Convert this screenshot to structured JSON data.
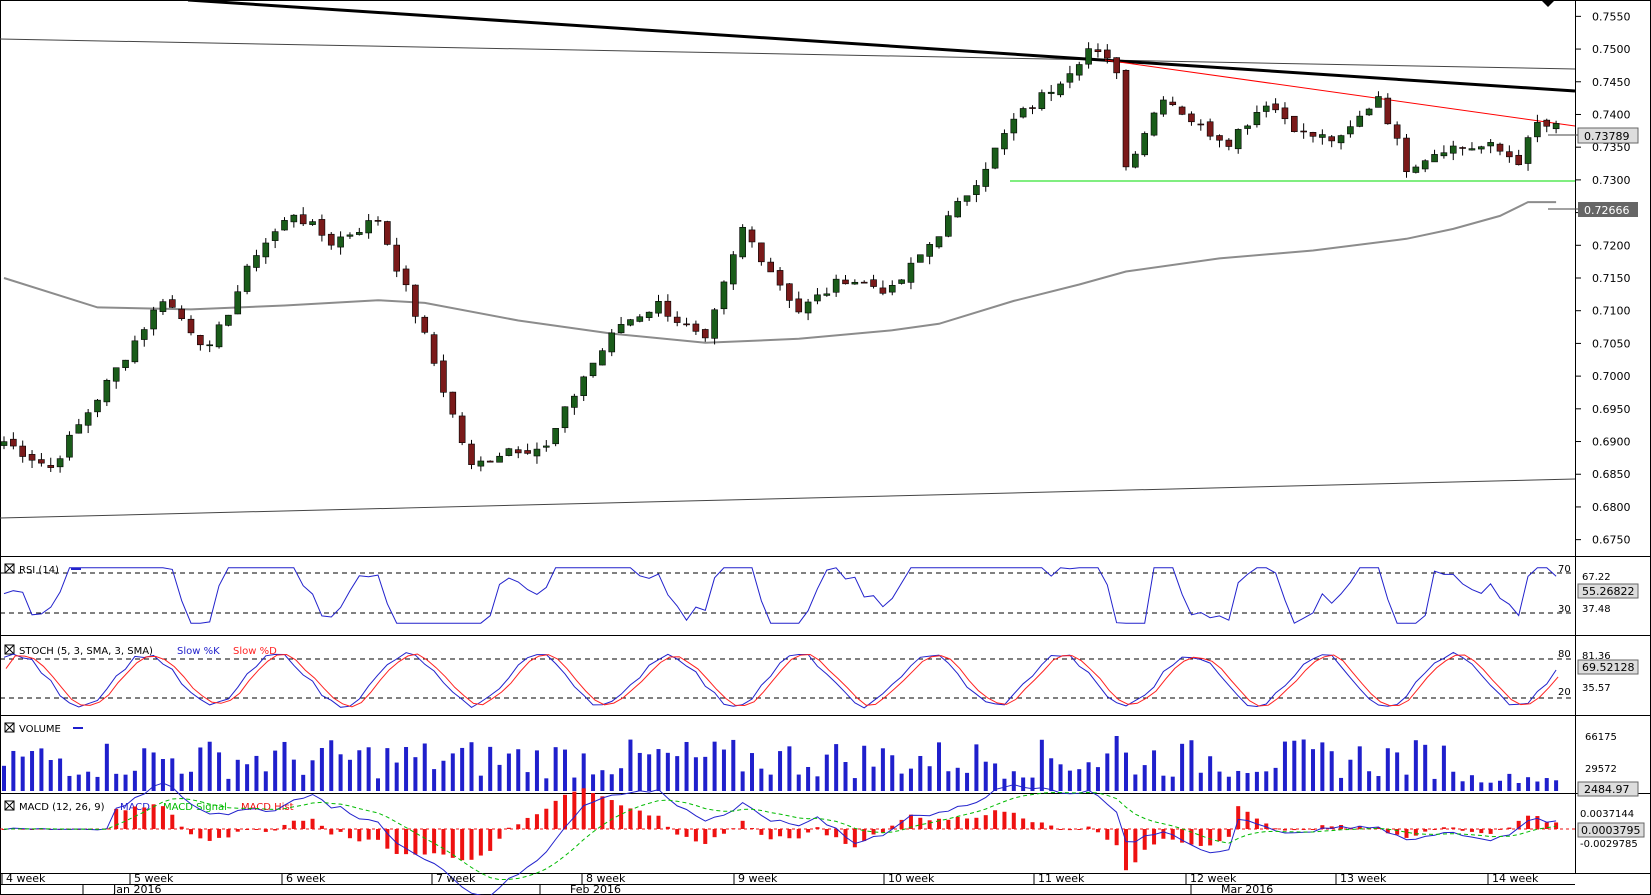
{
  "chart_data": {
    "type": "candlestick",
    "price_axis": {
      "min": 0.6725,
      "max": 0.7575,
      "ticks": [
        "0.7550",
        "0.7500",
        "0.7450",
        "0.7400",
        "0.7350",
        "0.7300",
        "0.7250",
        "0.7200",
        "0.7150",
        "0.7100",
        "0.7050",
        "0.7000",
        "0.6950",
        "0.6900",
        "0.6850",
        "0.6800",
        "0.6750"
      ]
    },
    "last_price": "0.73789",
    "ma_label": "0.72666",
    "week_labels": [
      "4 week",
      "5 week",
      "6 week",
      "7 week",
      "8 week",
      "9 week",
      "10 week",
      "11 week",
      "12 week",
      "13 week",
      "14 week"
    ],
    "month_labels": [
      "Jan 2016",
      "Feb 2016",
      "Mar 2016"
    ],
    "key_points": [
      {
        "x": 0,
        "y": 0.69
      },
      {
        "x": 5,
        "y": 0.686
      },
      {
        "x": 12,
        "y": 0.701
      },
      {
        "x": 17,
        "y": 0.712
      },
      {
        "x": 22,
        "y": 0.704
      },
      {
        "x": 27,
        "y": 0.719
      },
      {
        "x": 31,
        "y": 0.725
      },
      {
        "x": 35,
        "y": 0.7205
      },
      {
        "x": 40,
        "y": 0.724
      },
      {
        "x": 45,
        "y": 0.706
      },
      {
        "x": 50,
        "y": 0.686
      },
      {
        "x": 54,
        "y": 0.689
      },
      {
        "x": 58,
        "y": 0.689
      },
      {
        "x": 62,
        "y": 0.7
      },
      {
        "x": 66,
        "y": 0.708
      },
      {
        "x": 70,
        "y": 0.711
      },
      {
        "x": 75,
        "y": 0.705
      },
      {
        "x": 79,
        "y": 0.7225
      },
      {
        "x": 85,
        "y": 0.71
      },
      {
        "x": 90,
        "y": 0.715
      },
      {
        "x": 95,
        "y": 0.713
      },
      {
        "x": 100,
        "y": 0.722
      },
      {
        "x": 104,
        "y": 0.73
      },
      {
        "x": 108,
        "y": 0.739
      },
      {
        "x": 112,
        "y": 0.744
      },
      {
        "x": 116,
        "y": 0.75
      },
      {
        "x": 119,
        "y": 0.747
      },
      {
        "x": 120,
        "y": 0.732
      },
      {
        "x": 124,
        "y": 0.743
      },
      {
        "x": 128,
        "y": 0.738
      },
      {
        "x": 131,
        "y": 0.736
      },
      {
        "x": 135,
        "y": 0.742
      },
      {
        "x": 139,
        "y": 0.737
      },
      {
        "x": 143,
        "y": 0.736
      },
      {
        "x": 147,
        "y": 0.743
      },
      {
        "x": 150,
        "y": 0.732
      },
      {
        "x": 154,
        "y": 0.735
      },
      {
        "x": 159,
        "y": 0.735
      },
      {
        "x": 162,
        "y": 0.733
      },
      {
        "x": 164,
        "y": 0.7385
      },
      {
        "x": 166,
        "y": 0.7379
      }
    ],
    "sma200": [
      {
        "x": 0,
        "y": 0.715
      },
      {
        "x": 10,
        "y": 0.7105
      },
      {
        "x": 20,
        "y": 0.7102
      },
      {
        "x": 30,
        "y": 0.7108
      },
      {
        "x": 40,
        "y": 0.7116
      },
      {
        "x": 45,
        "y": 0.7112
      },
      {
        "x": 55,
        "y": 0.7085
      },
      {
        "x": 65,
        "y": 0.7065
      },
      {
        "x": 75,
        "y": 0.7051
      },
      {
        "x": 85,
        "y": 0.7057
      },
      {
        "x": 95,
        "y": 0.707
      },
      {
        "x": 100,
        "y": 0.708
      },
      {
        "x": 108,
        "y": 0.7115
      },
      {
        "x": 115,
        "y": 0.714
      },
      {
        "x": 120,
        "y": 0.716
      },
      {
        "x": 130,
        "y": 0.718
      },
      {
        "x": 140,
        "y": 0.7192
      },
      {
        "x": 150,
        "y": 0.721
      },
      {
        "x": 155,
        "y": 0.7225
      },
      {
        "x": 160,
        "y": 0.7245
      },
      {
        "x": 163,
        "y": 0.7266
      },
      {
        "x": 166,
        "y": 0.7266
      }
    ],
    "indicators": {
      "rsi": {
        "title": "RSI (14)",
        "levels": [
          "70",
          "30"
        ],
        "scale": [
          "67.22",
          "37.48"
        ],
        "value": "55.26822"
      },
      "stoch": {
        "title": "STOCH (5, 3, SMA, 3, SMA)",
        "k_label": "Slow %K",
        "d_label": "Slow %D",
        "levels": [
          "80",
          "20"
        ],
        "scale": [
          "81.36",
          "35.57"
        ],
        "value": "69.52128"
      },
      "volume": {
        "title": "VOLUME",
        "scale": [
          "66175",
          "29572"
        ],
        "value": "2484.97"
      },
      "macd": {
        "title": "MACD (12, 26, 9)",
        "line_label": "MACD",
        "signal_label": "MACD Signal",
        "hist_label": "MACD Hist",
        "scale": [
          "0.0037144",
          "-0.0029785"
        ],
        "value": "0.0003795"
      }
    }
  },
  "colors": {
    "up": "#1a5c1a",
    "down": "#7a1a1a",
    "sma": "#8c8c8c",
    "red_line": "#ff0000",
    "support": "#00dd00",
    "rsi": "#2222cc",
    "stoch_k": "#2222cc",
    "stoch_d": "#ff2222",
    "volume": "#1f1fcc",
    "macd": "#2222cc",
    "signal": "#00bb00",
    "hist": "#ee1111",
    "label_bg": "#666666",
    "label_hl": "#dddddd"
  }
}
